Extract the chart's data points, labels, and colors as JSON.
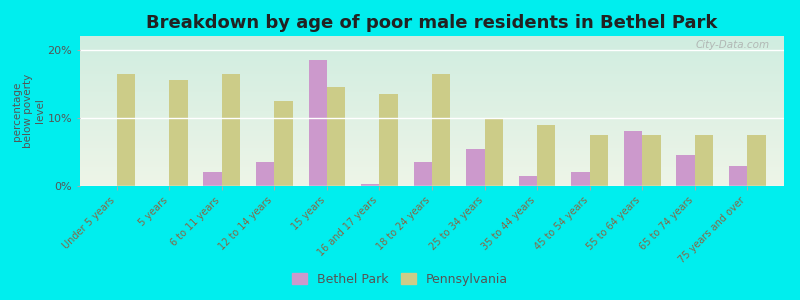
{
  "title": "Breakdown by age of poor male residents in Bethel Park",
  "ylabel": "percentage\nbelow poverty\nlevel",
  "categories": [
    "Under 5 years",
    "5 years",
    "6 to 11 years",
    "12 to 14 years",
    "15 years",
    "16 and 17 years",
    "18 to 24 years",
    "25 to 34 years",
    "35 to 44 years",
    "45 to 54 years",
    "55 to 64 years",
    "65 to 74 years",
    "75 years and over"
  ],
  "bethel_park": [
    0,
    0,
    2.0,
    3.5,
    18.5,
    0.3,
    3.5,
    5.5,
    1.5,
    2.0,
    8.0,
    4.5,
    3.0
  ],
  "pennsylvania": [
    16.5,
    15.5,
    16.5,
    12.5,
    14.5,
    13.5,
    16.5,
    10.0,
    9.0,
    7.5,
    7.5,
    7.5,
    7.5
  ],
  "bethel_color": "#cc99cc",
  "pennsylvania_color": "#cccc88",
  "background_color": "#00eeee",
  "plot_bg_top": "#eef5e8",
  "plot_bg_bottom": "#d0ede0",
  "ylim": [
    0,
    22
  ],
  "yticks": [
    0,
    10,
    20
  ],
  "ytick_labels": [
    "0%",
    "10%",
    "20%"
  ],
  "bar_width": 0.35,
  "title_fontsize": 13,
  "watermark": "City-Data.com"
}
